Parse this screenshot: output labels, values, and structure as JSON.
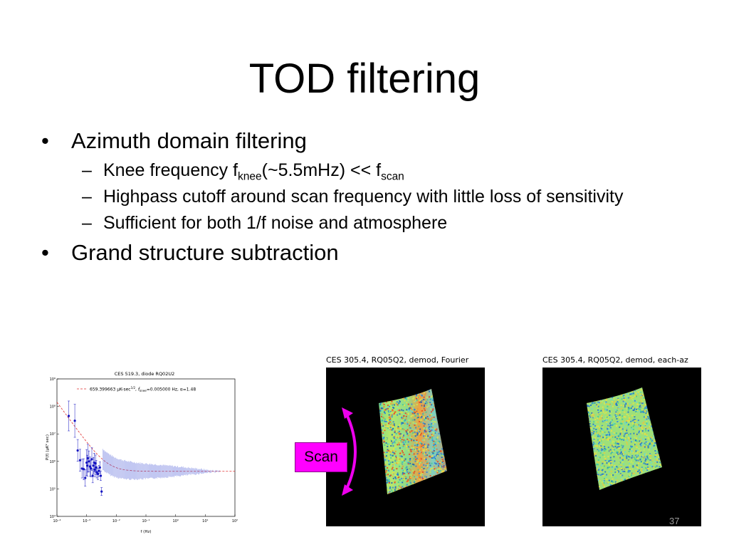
{
  "slide": {
    "title": "TOD filtering",
    "bullets": [
      {
        "text": "Azimuth domain filtering",
        "sub": [
          {
            "pre": "Knee frequency f",
            "sub1": "knee",
            "mid": "(~5.5mHz) << f",
            "sub2": "scan"
          },
          {
            "text": "Highpass cutoff around scan frequency with little loss of sensitivity"
          },
          {
            "text": "Sufficient for both 1/f noise and atmosphere"
          }
        ]
      },
      {
        "text": "Grand structure subtraction"
      }
    ],
    "page_number": "37"
  },
  "figures": {
    "map_left_title": "CES 305.4, RQ05Q2, demod, Fourier",
    "map_right_title": "CES 305.4, RQ05Q2, demod, each-az",
    "scan_label": "Scan"
  },
  "colors": {
    "scan_box": "#ff00ff",
    "arrow": "#ee00ee",
    "points": "#1010c0",
    "fit_line": "#e03030",
    "map_background": "#000000"
  },
  "chart_data": {
    "type": "scatter",
    "title": "CES 519.3, diode RQ02U2",
    "xlabel": "f (Hz)",
    "ylabel": "P(f) (μK² sec)",
    "xscale": "log",
    "yscale": "log",
    "xlim": [
      0.0001,
      100
    ],
    "ylim": [
      10000,
      1000000000
    ],
    "x_tick_labels": [
      "10⁻⁴",
      "10⁻³",
      "10⁻²",
      "10⁻¹",
      "10⁰",
      "10¹",
      "10²"
    ],
    "y_tick_labels": [
      "10⁹",
      "10⁸",
      "10⁷",
      "10⁶",
      "10⁵",
      "10⁴"
    ],
    "legend": {
      "placement": "top",
      "entry_value": "659.399663",
      "entry_unit": "μK-sec",
      "entry_exp": "1/2",
      "entry_knee_label": "f",
      "entry_knee_sub": "knee",
      "entry_knee_value": "=0.005000 Hz, α=1.48"
    },
    "fit": {
      "sigma": 659.399663,
      "f_knee": 0.005,
      "alpha": 1.48
    },
    "series": [
      {
        "x": [
          0.00025,
          0.0004,
          0.0005,
          0.0006,
          0.0007,
          0.0008,
          0.0009,
          0.001,
          0.00105,
          0.0011,
          0.0012,
          0.0013,
          0.0014,
          0.0015,
          0.0016,
          0.0017,
          0.0018,
          0.0019,
          0.002,
          0.0021,
          0.0022,
          0.0024,
          0.0026,
          0.0028,
          0.003,
          0.0032
        ],
        "y": [
          45000000,
          30000000,
          2500000,
          1100000,
          550000,
          520000,
          250000,
          900000,
          700000,
          1300000,
          1000000,
          650000,
          550000,
          1200000,
          300000,
          700000,
          900000,
          500000,
          850000,
          600000,
          400000,
          350000,
          450000,
          600000,
          300000,
          80000
        ],
        "yerr_factor": [
          3.5,
          4.0,
          2.5,
          2.5,
          2.2,
          2.4,
          2.0,
          3.0,
          2.4,
          3.2,
          2.4,
          2.2,
          2.0,
          2.6,
          1.8,
          2.0,
          2.2,
          1.8,
          2.0,
          1.8,
          1.6,
          1.6,
          1.6,
          1.6,
          1.5,
          1.4
        ]
      }
    ]
  }
}
